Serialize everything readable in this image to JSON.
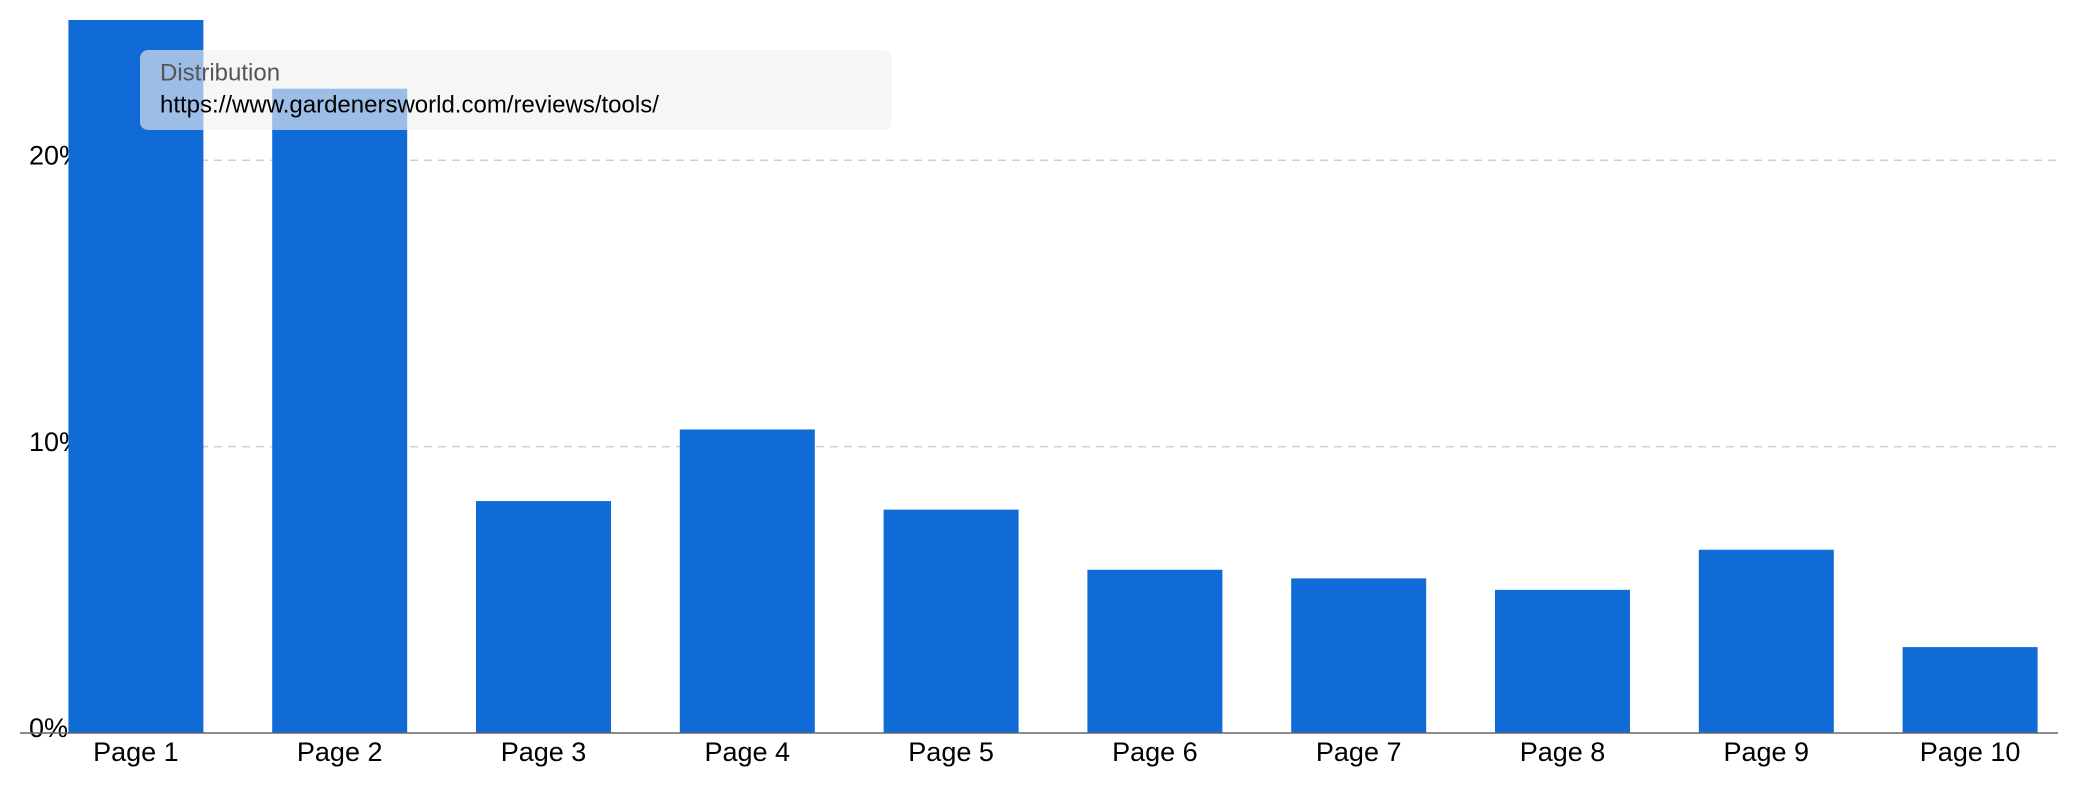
{
  "chart_data": {
    "type": "bar",
    "categories": [
      "Page 1",
      "Page 2",
      "Page 3",
      "Page 4",
      "Page 5",
      "Page 6",
      "Page 7",
      "Page 8",
      "Page 9",
      "Page 10"
    ],
    "values": [
      24.9,
      22.5,
      8.1,
      10.6,
      7.8,
      5.7,
      5.4,
      5.0,
      6.4,
      3.0
    ],
    "color": "#116bd6",
    "ylim": [
      0,
      24.9
    ],
    "yticks": [
      {
        "value": 0,
        "label": "0%"
      },
      {
        "value": 10,
        "label": "10%"
      },
      {
        "value": 20,
        "label": "20%"
      }
    ],
    "grid": true,
    "tooltip": {
      "title": "Distribution",
      "text": "https://www.gardenersworld.com/reviews/tools/"
    }
  }
}
